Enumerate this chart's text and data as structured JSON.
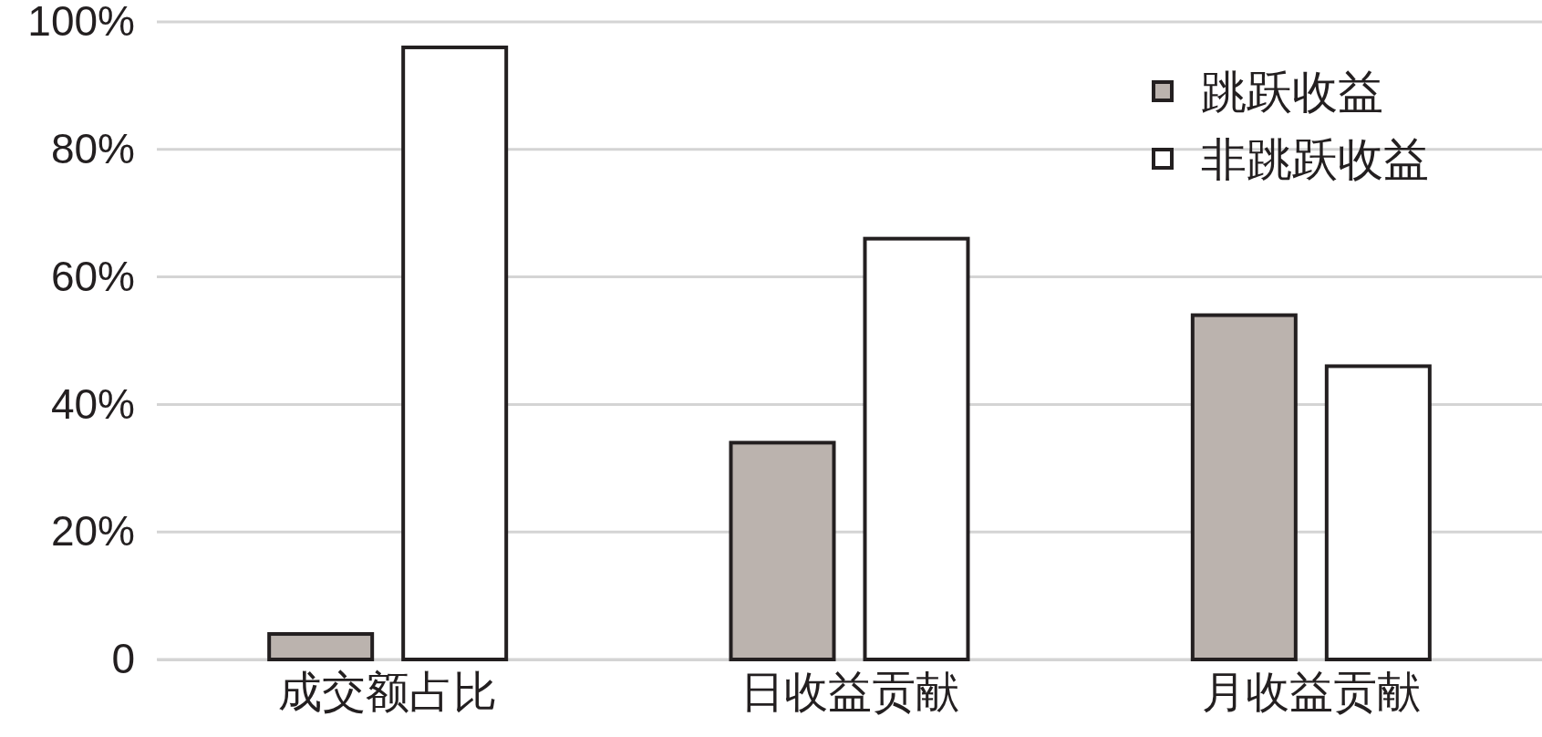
{
  "chart_data": {
    "type": "bar",
    "categories": [
      "成交额占比",
      "日收益贡献",
      "月收益贡献"
    ],
    "series": [
      {
        "name": "跳跃收益",
        "color": "#bbb3ae",
        "values": [
          4,
          34,
          54
        ]
      },
      {
        "name": "非跳跃收益",
        "color": "#ffffff",
        "values": [
          96,
          66,
          46
        ]
      }
    ],
    "ylim": [
      0,
      100
    ],
    "yticks": [
      {
        "value": 0,
        "label": "0"
      },
      {
        "value": 20,
        "label": "20%"
      },
      {
        "value": 40,
        "label": "40%"
      },
      {
        "value": 60,
        "label": "60%"
      },
      {
        "value": 80,
        "label": "80%"
      },
      {
        "value": 100,
        "label": "100%"
      }
    ],
    "grid": "y",
    "legend": "top right"
  }
}
